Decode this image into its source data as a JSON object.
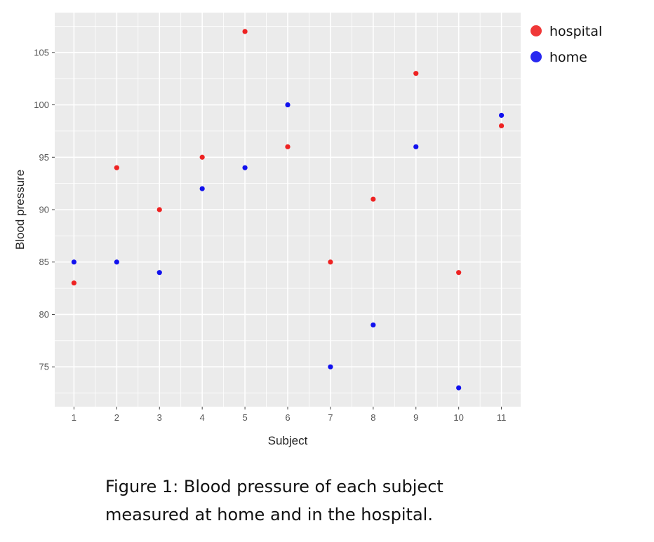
{
  "chart_data": {
    "type": "scatter",
    "xlabel": "Subject",
    "ylabel": "Blood pressure",
    "x_ticks": [
      "1",
      "2",
      "3",
      "4",
      "5",
      "6",
      "7",
      "8",
      "9",
      "10",
      "11"
    ],
    "y_ticks": [
      75,
      80,
      85,
      90,
      95,
      100,
      105
    ],
    "xlim": [
      0.55,
      11.45
    ],
    "ylim": [
      71.2,
      108.8
    ],
    "grid": true,
    "legend_position": "right-top",
    "series": [
      {
        "name": "hospital",
        "color": "#ee2222",
        "x": [
          1,
          2,
          3,
          4,
          5,
          6,
          7,
          8,
          9,
          10,
          11
        ],
        "y": [
          83,
          94,
          90,
          95,
          107,
          96,
          85,
          91,
          103,
          84,
          98
        ]
      },
      {
        "name": "home",
        "color": "#1111ee",
        "x": [
          1,
          2,
          3,
          4,
          5,
          6,
          7,
          8,
          9,
          10,
          11
        ],
        "y": [
          85,
          85,
          84,
          92,
          94,
          100,
          75,
          79,
          96,
          73,
          99
        ]
      }
    ]
  },
  "caption": {
    "line1": "Figure 1: Blood pressure of each subject",
    "line2": "measured at home and in the hospital."
  },
  "colors": {
    "panel_bg": "#ebebeb",
    "grid": "#ffffff"
  }
}
